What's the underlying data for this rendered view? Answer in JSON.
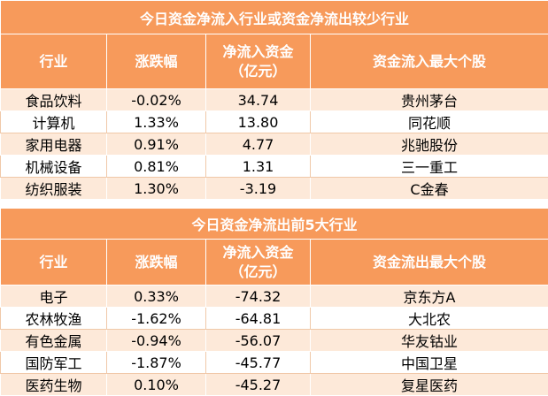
{
  "tables": [
    {
      "title": "今日资金净流入行业或资金净流出较少行业",
      "header": [
        "行业",
        "涨跌幅",
        "净流入资金（亿元）",
        "资金流入最大个股"
      ],
      "rows": [
        [
          "食品饮料",
          "-0.02%",
          "34.74",
          "贵州茅台"
        ],
        [
          "计算机",
          "1.33%",
          "13.80",
          "同花顺"
        ],
        [
          "家用电器",
          "0.91%",
          "4.77",
          "兆驰股份"
        ],
        [
          "机械设备",
          "0.81%",
          "1.31",
          "三一重工"
        ],
        [
          "纺织服装",
          "1.30%",
          "-3.19",
          "C金春"
        ]
      ]
    },
    {
      "title": "今日资金净流出前5大行业",
      "header": [
        "行业",
        "涨跌幅",
        "净流入资金（亿元）",
        "资金流出最大个股"
      ],
      "rows": [
        [
          "电子",
          "0.33%",
          "-74.32",
          "京东方A"
        ],
        [
          "农林牧渔",
          "-1.62%",
          "-64.81",
          "大北农"
        ],
        [
          "有色金属",
          "-0.94%",
          "-56.07",
          "华友钴业"
        ],
        [
          "国防军工",
          "-1.87%",
          "-45.77",
          "中国卫星"
        ],
        [
          "医药生物",
          "0.10%",
          "-45.27",
          "复星医药"
        ]
      ]
    }
  ]
}
